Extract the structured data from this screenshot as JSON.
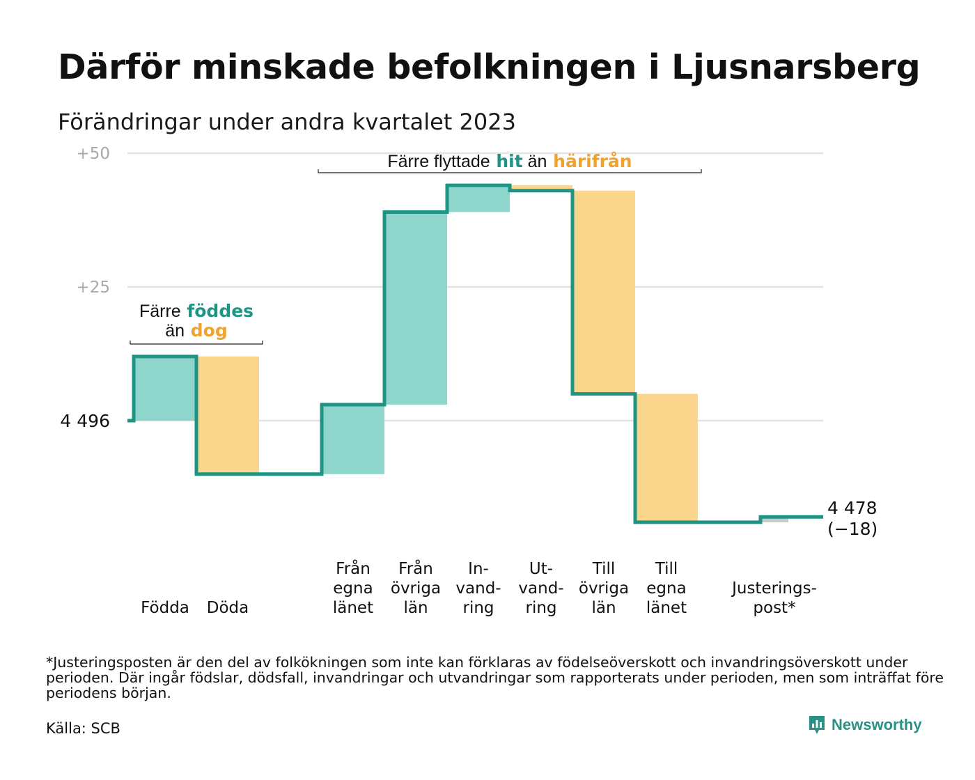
{
  "chart_data": {
    "type": "waterfall",
    "title": "Därför minskade befolkningen i Ljusnarsberg",
    "subtitle": "Förändringar under andra kvartalet 2023",
    "start_value": 4496,
    "start_label": "4  496",
    "end_value": 4478,
    "end_label": "4 478",
    "end_change_label": "(−18)",
    "y_ticks": [
      {
        "value": 25,
        "label": "+25"
      },
      {
        "value": 50,
        "label": "+50"
      }
    ],
    "ylim": [
      -21,
      50
    ],
    "steps": [
      {
        "label_lines": [
          "Födda"
        ],
        "value": 12,
        "kind": "inflow"
      },
      {
        "label_lines": [
          "Döda"
        ],
        "value": -22,
        "kind": "outflow"
      },
      {
        "label_lines": [
          "Från",
          "egna",
          "länet"
        ],
        "value": 13,
        "kind": "inflow"
      },
      {
        "label_lines": [
          "Från",
          "övriga",
          "län"
        ],
        "value": 36,
        "kind": "inflow"
      },
      {
        "label_lines": [
          "In-",
          "vand-",
          "ring"
        ],
        "value": 5,
        "kind": "inflow"
      },
      {
        "label_lines": [
          "Ut-",
          "vand-",
          "ring"
        ],
        "value": -1,
        "kind": "outflow"
      },
      {
        "label_lines": [
          "Till",
          "övriga",
          "län"
        ],
        "value": -38,
        "kind": "outflow"
      },
      {
        "label_lines": [
          "Till",
          "egna",
          "länet"
        ],
        "value": -24,
        "kind": "outflow"
      },
      {
        "label_lines": [
          "Justerings-",
          "post*"
        ],
        "value": 1,
        "kind": "adjustment"
      }
    ],
    "annotations": [
      {
        "id": "birth-death",
        "line1": "Färre",
        "highlight1": "föddes",
        "line2": "än",
        "highlight2": "dog",
        "span_steps": [
          0,
          1
        ]
      },
      {
        "id": "migration",
        "line1": "Färre flyttade",
        "highlight1": "hit",
        "line2": "än",
        "highlight2": "härifrån",
        "span_steps": [
          2,
          7
        ]
      }
    ],
    "colors": {
      "line": "#1f9484",
      "inflow": "#8ed6cc",
      "outflow": "#fad58c",
      "adjustment": "#c6ccc9",
      "grid": "#e2e2e2",
      "tick_text": "#a8a8a8",
      "highlight_in": "#1f9484",
      "highlight_out": "#f0a22e"
    }
  },
  "footnote": "*Justeringsposten är den del av folkökningen som inte kan förklaras av födelseöverskott och invandringsöverskott under perioden. Där ingår födslar, dödsfall, invandringar och utvandringar som rapporterats under perioden, men som inträffat före periodens början.",
  "source": "Källa: SCB",
  "brand": {
    "name": "Newsworthy",
    "icon": "newsworthy-logo-icon"
  }
}
